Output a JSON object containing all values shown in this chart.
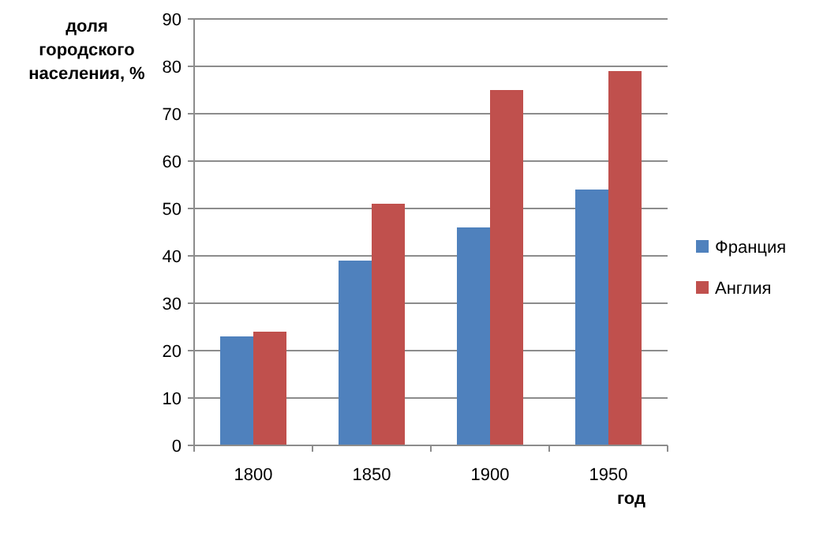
{
  "chart_data": {
    "type": "bar",
    "ylabel": "доля городского населения, %",
    "xlabel": "год",
    "categories": [
      "1800",
      "1850",
      "1900",
      "1950"
    ],
    "series": [
      {
        "name": "Франция",
        "color": "#4f81bd",
        "values": [
          23,
          39,
          46,
          54
        ]
      },
      {
        "name": "Англия",
        "color": "#c0504d",
        "values": [
          24,
          51,
          75,
          79
        ]
      }
    ],
    "ylim": [
      0,
      90
    ],
    "yticks": [
      0,
      10,
      20,
      30,
      40,
      50,
      60,
      70,
      80,
      90
    ],
    "grid": "y",
    "legend": "right"
  }
}
